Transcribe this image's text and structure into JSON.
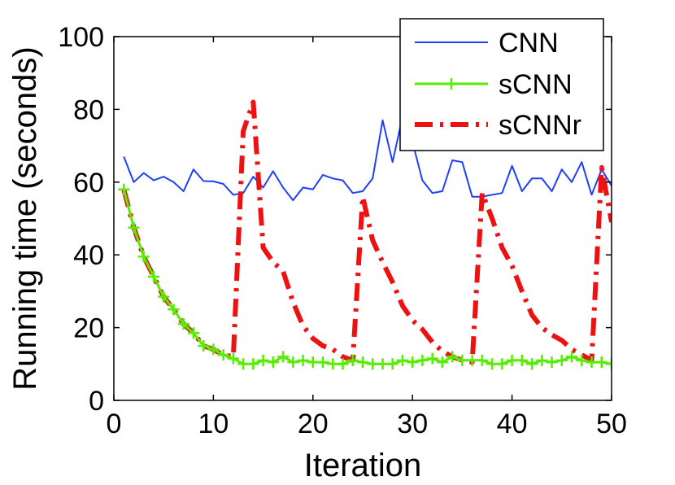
{
  "chart_data": {
    "type": "line",
    "title": "",
    "xlabel": "Iteration",
    "ylabel": "Running time (seconds)",
    "xlim": [
      0,
      50
    ],
    "ylim": [
      0,
      100
    ],
    "xticks": [
      0,
      10,
      20,
      30,
      40,
      50
    ],
    "yticks": [
      0,
      20,
      40,
      60,
      80,
      100
    ],
    "grid": false,
    "legend_position": "top-right",
    "x": [
      1,
      2,
      3,
      4,
      5,
      6,
      7,
      8,
      9,
      10,
      11,
      12,
      13,
      14,
      15,
      16,
      17,
      18,
      19,
      20,
      21,
      22,
      23,
      24,
      25,
      26,
      27,
      28,
      29,
      30,
      31,
      32,
      33,
      34,
      35,
      36,
      37,
      38,
      39,
      40,
      41,
      42,
      43,
      44,
      45,
      46,
      47,
      48,
      49,
      50
    ],
    "series": [
      {
        "name": "CNN",
        "color": "#1f3fff",
        "style": "solid",
        "marker": "none",
        "values": [
          67,
          60,
          62.5,
          60.5,
          61.5,
          60,
          57.5,
          63.5,
          60.3,
          60.2,
          59.5,
          56.5,
          57,
          61.5,
          58.5,
          63,
          58.5,
          55,
          58.5,
          58,
          62,
          61,
          60.5,
          57,
          57.5,
          61,
          77,
          65.5,
          78,
          71,
          60.5,
          57,
          57.5,
          66,
          65.5,
          56,
          56,
          56.5,
          57,
          64.5,
          57.5,
          61,
          61,
          57.5,
          63.5,
          60,
          65.5,
          56.5,
          63.5,
          59
        ]
      },
      {
        "name": "sCNN",
        "color": "#55ee00",
        "style": "solid",
        "marker": "plus",
        "values": [
          58,
          47.5,
          39.5,
          34,
          28.5,
          25,
          21,
          18.5,
          15,
          14,
          12.5,
          11.5,
          10,
          10,
          11,
          10.5,
          12,
          10.5,
          11,
          10.5,
          10.5,
          10,
          10,
          11,
          10.5,
          10,
          10,
          10,
          11,
          10.5,
          11,
          11.5,
          10.5,
          12,
          11,
          11,
          11,
          10,
          10,
          11,
          11,
          10,
          11,
          10.5,
          11,
          12,
          11,
          10.5,
          10.5,
          10
        ]
      },
      {
        "name": "sCNNr",
        "color": "#ee1111",
        "style": "dash-dot",
        "marker": "none",
        "values": [
          58,
          47.5,
          39.5,
          34,
          28.5,
          25,
          21,
          18.5,
          15,
          14,
          12.5,
          12,
          74,
          82,
          42,
          38,
          35.5,
          27,
          20.5,
          17,
          15,
          14,
          12,
          11,
          56,
          44,
          38,
          32.5,
          26,
          22,
          19.5,
          16,
          13.5,
          12,
          11,
          10.5,
          57,
          50,
          42,
          37,
          30,
          23.5,
          20,
          18,
          16.5,
          14,
          12.5,
          11,
          64,
          49
        ]
      }
    ]
  }
}
